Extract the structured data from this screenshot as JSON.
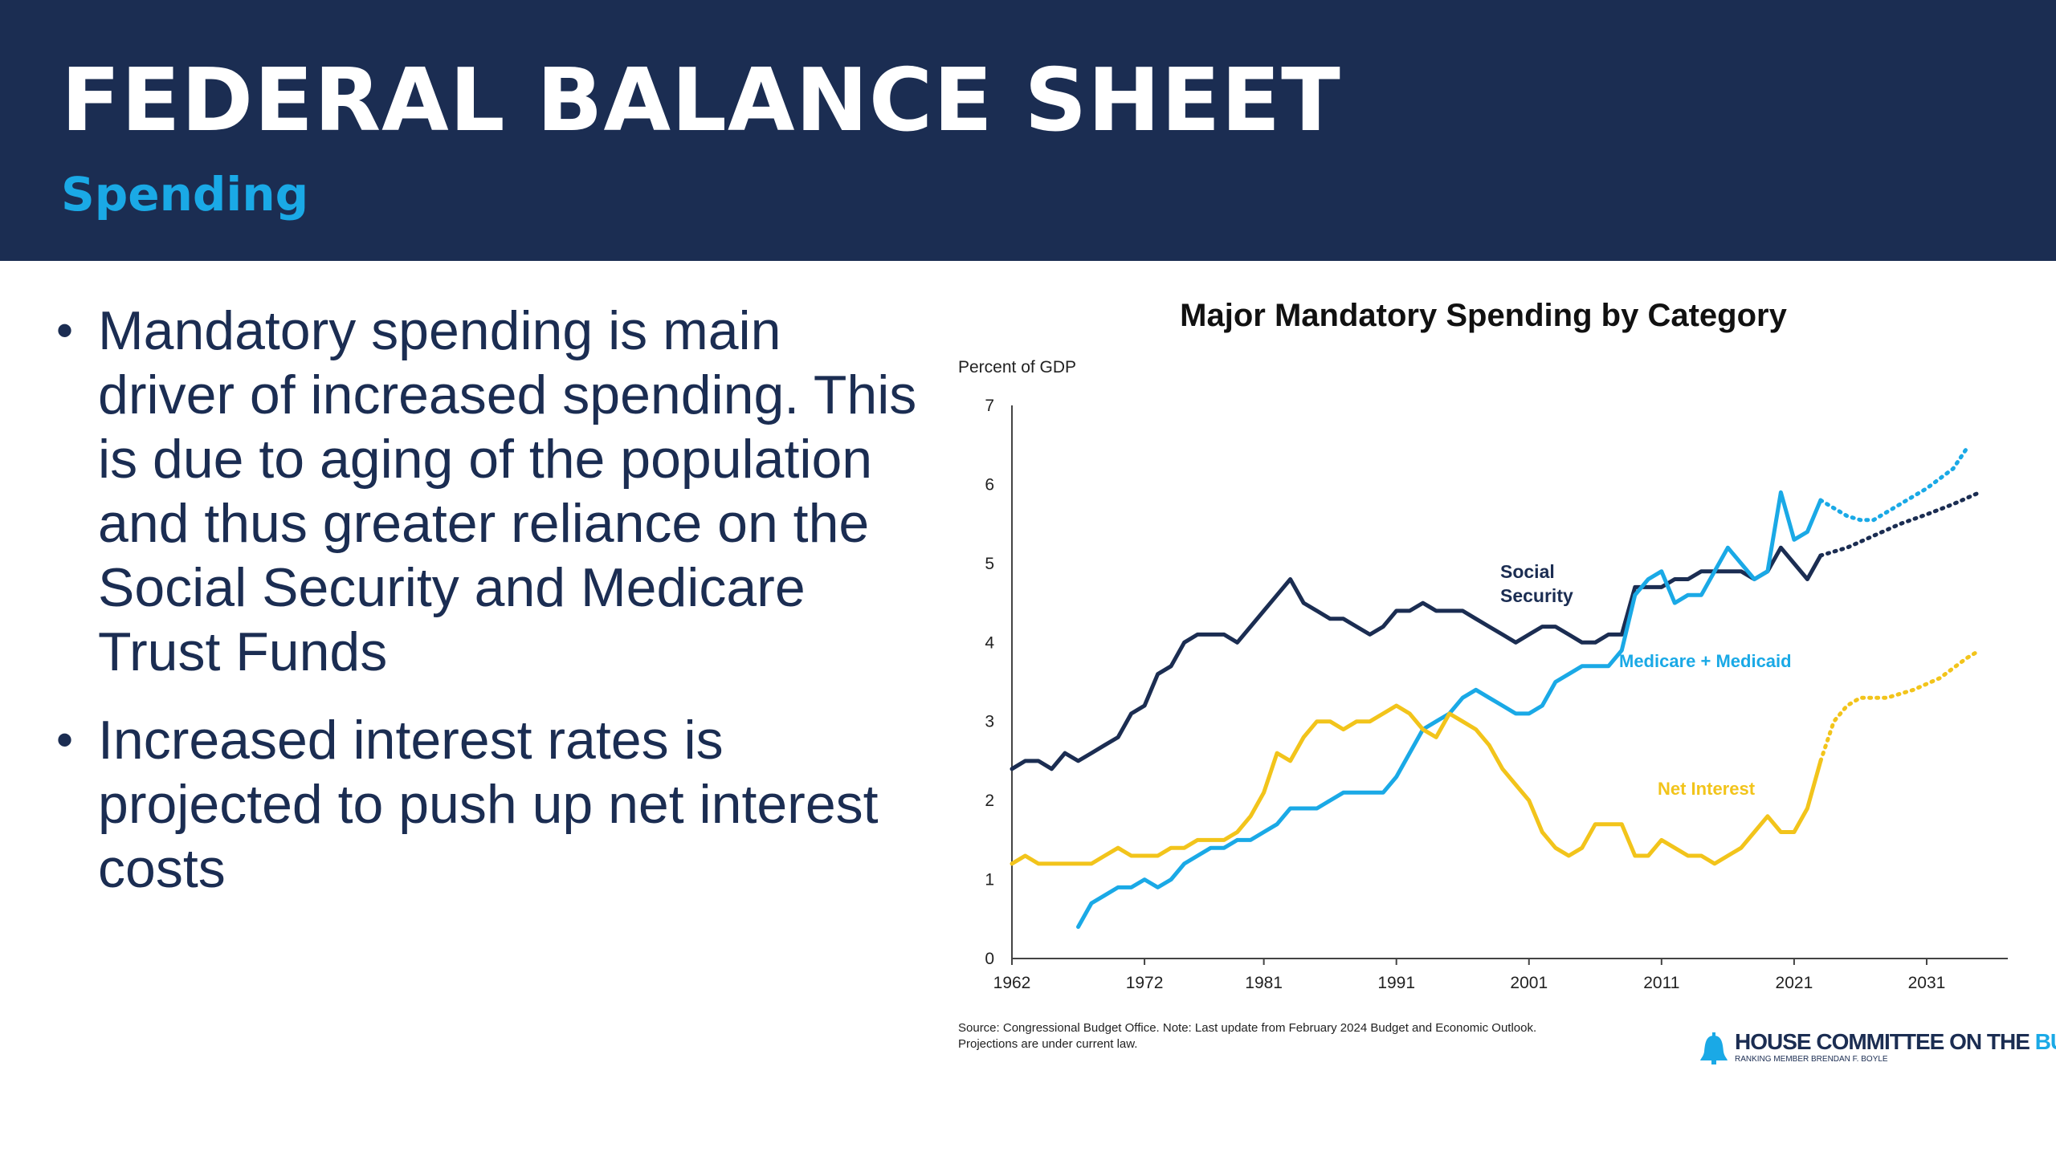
{
  "header": {
    "title": "FEDERAL BALANCE SHEET",
    "subtitle": "Spending"
  },
  "bullets": [
    "Mandatory spending is main driver of increased spending. This is due to aging of the population and thus greater reliance on the Social Security and Medicare Trust Funds",
    "Increased interest rates is projected to push up net interest costs"
  ],
  "logo": {
    "text_main": "HOUSE COMMITTEE ON THE ",
    "text_accent": "BUDGET",
    "sub": "RANKING MEMBER BRENDAN F. BOYLE",
    "icon": "liberty-bell-icon"
  },
  "chart_data": {
    "type": "line",
    "title": "Major Mandatory Spending by Category",
    "ylabel": "Percent of GDP",
    "xlabel": "",
    "xlim": [
      1962,
      2035
    ],
    "ylim": [
      0,
      7
    ],
    "yticks": [
      0,
      1,
      2,
      3,
      4,
      5,
      6,
      7
    ],
    "xticks": [
      1962,
      1972,
      1981,
      1991,
      2001,
      2011,
      2021,
      2031
    ],
    "grid": false,
    "source": "Source: Congressional Budget Office. Note: Last update from February 2024 Budget and Economic Outlook. Projections are under current law.",
    "series": [
      {
        "name": "Social Security",
        "label_lines": [
          "Social",
          "Security"
        ],
        "color": "#1b2d52",
        "values": [
          [
            1962,
            2.4
          ],
          [
            1963,
            2.5
          ],
          [
            1964,
            2.5
          ],
          [
            1965,
            2.4
          ],
          [
            1966,
            2.6
          ],
          [
            1967,
            2.5
          ],
          [
            1968,
            2.6
          ],
          [
            1969,
            2.7
          ],
          [
            1970,
            2.8
          ],
          [
            1971,
            3.1
          ],
          [
            1972,
            3.2
          ],
          [
            1973,
            3.6
          ],
          [
            1974,
            3.7
          ],
          [
            1975,
            4.0
          ],
          [
            1976,
            4.1
          ],
          [
            1977,
            4.1
          ],
          [
            1978,
            4.1
          ],
          [
            1979,
            4.0
          ],
          [
            1980,
            4.2
          ],
          [
            1981,
            4.4
          ],
          [
            1982,
            4.6
          ],
          [
            1983,
            4.8
          ],
          [
            1984,
            4.5
          ],
          [
            1985,
            4.4
          ],
          [
            1986,
            4.3
          ],
          [
            1987,
            4.3
          ],
          [
            1988,
            4.2
          ],
          [
            1989,
            4.1
          ],
          [
            1990,
            4.2
          ],
          [
            1991,
            4.4
          ],
          [
            1992,
            4.4
          ],
          [
            1993,
            4.5
          ],
          [
            1994,
            4.4
          ],
          [
            1995,
            4.4
          ],
          [
            1996,
            4.4
          ],
          [
            1997,
            4.3
          ],
          [
            1998,
            4.2
          ],
          [
            1999,
            4.1
          ],
          [
            2000,
            4.0
          ],
          [
            2001,
            4.1
          ],
          [
            2002,
            4.2
          ],
          [
            2003,
            4.2
          ],
          [
            2004,
            4.1
          ],
          [
            2005,
            4.0
          ],
          [
            2006,
            4.0
          ],
          [
            2007,
            4.1
          ],
          [
            2008,
            4.1
          ],
          [
            2009,
            4.7
          ],
          [
            2010,
            4.7
          ],
          [
            2011,
            4.7
          ],
          [
            2012,
            4.8
          ],
          [
            2013,
            4.8
          ],
          [
            2014,
            4.9
          ],
          [
            2015,
            4.9
          ],
          [
            2016,
            4.9
          ],
          [
            2017,
            4.9
          ],
          [
            2018,
            4.8
          ],
          [
            2019,
            4.9
          ],
          [
            2020,
            5.2
          ],
          [
            2021,
            5.0
          ],
          [
            2022,
            4.8
          ],
          [
            2023,
            5.1
          ]
        ],
        "projection": [
          [
            2023,
            5.1
          ],
          [
            2025,
            5.2
          ],
          [
            2027,
            5.35
          ],
          [
            2029,
            5.5
          ],
          [
            2031,
            5.62
          ],
          [
            2033,
            5.75
          ],
          [
            2035,
            5.9
          ]
        ]
      },
      {
        "name": "Medicare + Medicaid",
        "color": "#1aa9e6",
        "values": [
          [
            1967,
            0.4
          ],
          [
            1968,
            0.7
          ],
          [
            1969,
            0.8
          ],
          [
            1970,
            0.9
          ],
          [
            1971,
            0.9
          ],
          [
            1972,
            1.0
          ],
          [
            1973,
            0.9
          ],
          [
            1974,
            1.0
          ],
          [
            1975,
            1.2
          ],
          [
            1976,
            1.3
          ],
          [
            1977,
            1.4
          ],
          [
            1978,
            1.4
          ],
          [
            1979,
            1.5
          ],
          [
            1980,
            1.5
          ],
          [
            1981,
            1.6
          ],
          [
            1982,
            1.7
          ],
          [
            1983,
            1.9
          ],
          [
            1984,
            1.9
          ],
          [
            1985,
            1.9
          ],
          [
            1986,
            2.0
          ],
          [
            1987,
            2.1
          ],
          [
            1988,
            2.1
          ],
          [
            1989,
            2.1
          ],
          [
            1990,
            2.1
          ],
          [
            1991,
            2.3
          ],
          [
            1992,
            2.6
          ],
          [
            1993,
            2.9
          ],
          [
            1994,
            3.0
          ],
          [
            1995,
            3.1
          ],
          [
            1996,
            3.3
          ],
          [
            1997,
            3.4
          ],
          [
            1998,
            3.3
          ],
          [
            1999,
            3.2
          ],
          [
            2000,
            3.1
          ],
          [
            2001,
            3.1
          ],
          [
            2002,
            3.2
          ],
          [
            2003,
            3.5
          ],
          [
            2004,
            3.6
          ],
          [
            2005,
            3.7
          ],
          [
            2006,
            3.7
          ],
          [
            2007,
            3.7
          ],
          [
            2008,
            3.9
          ],
          [
            2009,
            4.6
          ],
          [
            2010,
            4.8
          ],
          [
            2011,
            4.9
          ],
          [
            2012,
            4.5
          ],
          [
            2013,
            4.6
          ],
          [
            2014,
            4.6
          ],
          [
            2015,
            4.9
          ],
          [
            2016,
            5.2
          ],
          [
            2017,
            5.0
          ],
          [
            2018,
            4.8
          ],
          [
            2019,
            4.9
          ],
          [
            2020,
            5.9
          ],
          [
            2021,
            5.3
          ],
          [
            2022,
            5.4
          ],
          [
            2023,
            5.8
          ]
        ],
        "projection": [
          [
            2023,
            5.8
          ],
          [
            2025,
            5.6
          ],
          [
            2026,
            5.55
          ],
          [
            2027,
            5.55
          ],
          [
            2029,
            5.75
          ],
          [
            2031,
            5.95
          ],
          [
            2033,
            6.2
          ],
          [
            2034,
            6.45
          ]
        ]
      },
      {
        "name": "Net Interest",
        "color": "#f2c41b",
        "values": [
          [
            1962,
            1.2
          ],
          [
            1963,
            1.3
          ],
          [
            1964,
            1.2
          ],
          [
            1965,
            1.2
          ],
          [
            1966,
            1.2
          ],
          [
            1967,
            1.2
          ],
          [
            1968,
            1.2
          ],
          [
            1969,
            1.3
          ],
          [
            1970,
            1.4
          ],
          [
            1971,
            1.3
          ],
          [
            1972,
            1.3
          ],
          [
            1973,
            1.3
          ],
          [
            1974,
            1.4
          ],
          [
            1975,
            1.4
          ],
          [
            1976,
            1.5
          ],
          [
            1977,
            1.5
          ],
          [
            1978,
            1.5
          ],
          [
            1979,
            1.6
          ],
          [
            1980,
            1.8
          ],
          [
            1981,
            2.1
          ],
          [
            1982,
            2.6
          ],
          [
            1983,
            2.5
          ],
          [
            1984,
            2.8
          ],
          [
            1985,
            3.0
          ],
          [
            1986,
            3.0
          ],
          [
            1987,
            2.9
          ],
          [
            1988,
            3.0
          ],
          [
            1989,
            3.0
          ],
          [
            1990,
            3.1
          ],
          [
            1991,
            3.2
          ],
          [
            1992,
            3.1
          ],
          [
            1993,
            2.9
          ],
          [
            1994,
            2.8
          ],
          [
            1995,
            3.1
          ],
          [
            1996,
            3.0
          ],
          [
            1997,
            2.9
          ],
          [
            1998,
            2.7
          ],
          [
            1999,
            2.4
          ],
          [
            2000,
            2.2
          ],
          [
            2001,
            2.0
          ],
          [
            2002,
            1.6
          ],
          [
            2003,
            1.4
          ],
          [
            2004,
            1.3
          ],
          [
            2005,
            1.4
          ],
          [
            2006,
            1.7
          ],
          [
            2007,
            1.7
          ],
          [
            2008,
            1.7
          ],
          [
            2009,
            1.3
          ],
          [
            2010,
            1.3
          ],
          [
            2011,
            1.5
          ],
          [
            2012,
            1.4
          ],
          [
            2013,
            1.3
          ],
          [
            2014,
            1.3
          ],
          [
            2015,
            1.2
          ],
          [
            2016,
            1.3
          ],
          [
            2017,
            1.4
          ],
          [
            2018,
            1.6
          ],
          [
            2019,
            1.8
          ],
          [
            2020,
            1.6
          ],
          [
            2021,
            1.6
          ],
          [
            2022,
            1.9
          ],
          [
            2023,
            2.5
          ]
        ],
        "projection": [
          [
            2023,
            2.5
          ],
          [
            2024,
            3.0
          ],
          [
            2025,
            3.2
          ],
          [
            2026,
            3.3
          ],
          [
            2028,
            3.3
          ],
          [
            2030,
            3.4
          ],
          [
            2032,
            3.55
          ],
          [
            2034,
            3.8
          ],
          [
            2035,
            3.9
          ]
        ]
      }
    ]
  }
}
